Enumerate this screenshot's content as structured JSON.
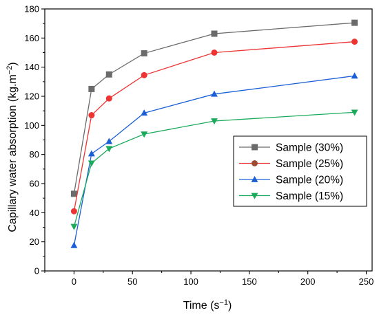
{
  "chart_data": {
    "type": "line",
    "xlabel_text": "Time (s",
    "xlabel_sup": "−1",
    "xlabel_end": ")",
    "ylabel_text": "Capillary water absorption (kg.m",
    "ylabel_sup": "−2",
    "ylabel_end": ")",
    "xlim": [
      -25,
      255
    ],
    "ylim": [
      0,
      180
    ],
    "xticks": [
      0,
      50,
      100,
      150,
      200,
      250
    ],
    "yticks": [
      0,
      20,
      40,
      60,
      80,
      100,
      120,
      140,
      160,
      180
    ],
    "legend_position": "center-right",
    "x": [
      0,
      15,
      30,
      60,
      120,
      240
    ],
    "series": [
      {
        "name": "Sample (30%)",
        "color": "#6b6b6b",
        "marker": "square",
        "values": [
          53,
          125,
          135,
          149.5,
          163,
          170.5
        ]
      },
      {
        "name": "Sample (25%)",
        "color": "#ee3333",
        "marker": "circle",
        "values": [
          41,
          107,
          118.5,
          134.5,
          150,
          157.5
        ]
      },
      {
        "name": "Sample (20%)",
        "color": "#1a5fd6",
        "marker": "triangle-up",
        "values": [
          17.5,
          80.5,
          89,
          108.5,
          121.5,
          134
        ]
      },
      {
        "name": "Sample (15%)",
        "color": "#1aaa5a",
        "marker": "triangle-down",
        "values": [
          30.5,
          74,
          84,
          94,
          103,
          109
        ]
      }
    ],
    "legend_marker_colors": [
      "#6b6b6b",
      "#9e4a33",
      "#1a5fd6",
      "#1aaa5a"
    ]
  }
}
